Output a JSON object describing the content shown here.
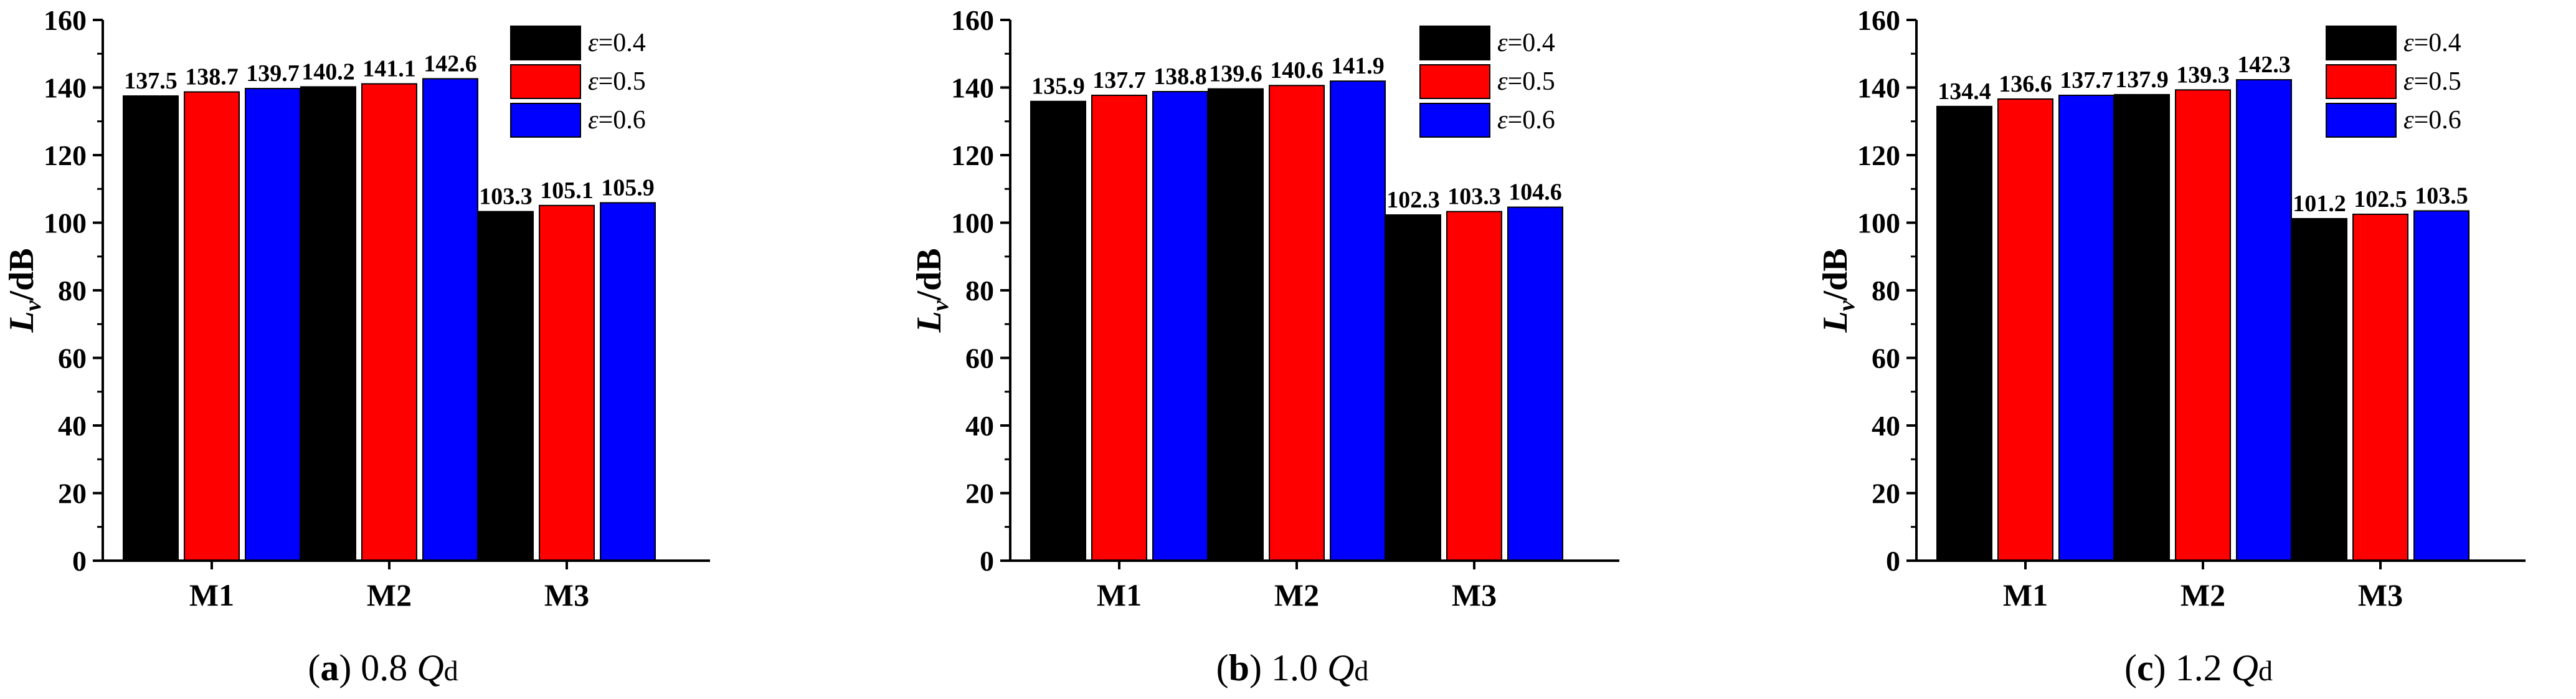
{
  "chart_data": [
    {
      "type": "bar",
      "panel": "a",
      "caption": {
        "letter": "a",
        "value": "0.8",
        "q": "Q",
        "sub": "d"
      },
      "categories": [
        "M1",
        "M2",
        "M3"
      ],
      "ylabel": {
        "symbol": "L",
        "sub": "v",
        "unit": "/dB"
      },
      "ylim": [
        0,
        160
      ],
      "yticks": [
        "0",
        "20",
        "40",
        "60",
        "80",
        "100",
        "120",
        "140",
        "160"
      ],
      "legend_position": "top-right",
      "series": [
        {
          "symbol": "ε",
          "value_text": "=0.4",
          "color": "#000000",
          "values": [
            137.5,
            140.2,
            103.3
          ],
          "labels": [
            "137.5",
            "140.2",
            "103.3"
          ]
        },
        {
          "symbol": "ε",
          "value_text": "=0.5",
          "color": "#ff0000",
          "values": [
            138.7,
            141.1,
            105.1
          ],
          "labels": [
            "138.7",
            "141.1",
            "105.1"
          ]
        },
        {
          "symbol": "ε",
          "value_text": "=0.6",
          "color": "#0000ff",
          "values": [
            139.7,
            142.6,
            105.9
          ],
          "labels": [
            "139.7",
            "142.6",
            "105.9"
          ]
        }
      ]
    },
    {
      "type": "bar",
      "panel": "b",
      "caption": {
        "letter": "b",
        "value": "1.0",
        "q": "Q",
        "sub": "d"
      },
      "categories": [
        "M1",
        "M2",
        "M3"
      ],
      "ylabel": {
        "symbol": "L",
        "sub": "v",
        "unit": "/dB"
      },
      "ylim": [
        0,
        160
      ],
      "yticks": [
        "0",
        "20",
        "40",
        "60",
        "80",
        "100",
        "120",
        "140",
        "160"
      ],
      "legend_position": "top-right",
      "series": [
        {
          "symbol": "ε",
          "value_text": "=0.4",
          "color": "#000000",
          "values": [
            135.9,
            139.6,
            102.3
          ],
          "labels": [
            "135.9",
            "139.6",
            "102.3"
          ]
        },
        {
          "symbol": "ε",
          "value_text": "=0.5",
          "color": "#ff0000",
          "values": [
            137.7,
            140.6,
            103.3
          ],
          "labels": [
            "137.7",
            "140.6",
            "103.3"
          ]
        },
        {
          "symbol": "ε",
          "value_text": "=0.6",
          "color": "#0000ff",
          "values": [
            138.8,
            141.9,
            104.6
          ],
          "labels": [
            "138.8",
            "141.9",
            "104.6"
          ]
        }
      ]
    },
    {
      "type": "bar",
      "panel": "c",
      "caption": {
        "letter": "c",
        "value": "1.2",
        "q": "Q",
        "sub": "d"
      },
      "categories": [
        "M1",
        "M2",
        "M3"
      ],
      "ylabel": {
        "symbol": "L",
        "sub": "v",
        "unit": "/dB"
      },
      "ylim": [
        0,
        160
      ],
      "yticks": [
        "0",
        "20",
        "40",
        "60",
        "80",
        "100",
        "120",
        "140",
        "160"
      ],
      "legend_position": "top-right",
      "series": [
        {
          "symbol": "ε",
          "value_text": "=0.4",
          "color": "#000000",
          "values": [
            134.4,
            137.9,
            101.2
          ],
          "labels": [
            "134.4",
            "137.9",
            "101.2"
          ]
        },
        {
          "symbol": "ε",
          "value_text": "=0.5",
          "color": "#ff0000",
          "values": [
            136.6,
            139.3,
            102.5
          ],
          "labels": [
            "136.6",
            "139.3",
            "102.5"
          ]
        },
        {
          "symbol": "ε",
          "value_text": "=0.6",
          "color": "#0000ff",
          "values": [
            137.7,
            142.3,
            103.5
          ],
          "labels": [
            "137.7",
            "142.3",
            "103.5"
          ]
        }
      ]
    }
  ]
}
